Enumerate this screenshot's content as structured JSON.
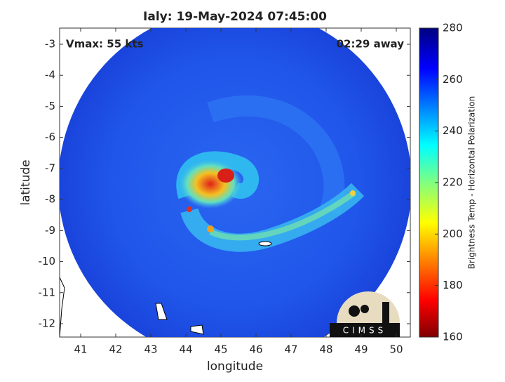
{
  "chart_data": {
    "type": "image",
    "title": "Ialy: 19-May-2024 07:45:00",
    "annotations": [
      "Vmax: 55 kts",
      "02:29 away"
    ],
    "xlabel": "longitude",
    "ylabel": "latitude",
    "xlim": [
      40.4,
      50.4
    ],
    "xticks": [
      41,
      42,
      43,
      44,
      45,
      46,
      47,
      48,
      49,
      50
    ],
    "ylim": [
      -12.43,
      -2.48
    ],
    "yticks": [
      -3,
      -4,
      -5,
      -6,
      -7,
      -8,
      -9,
      -10,
      -11,
      -12
    ],
    "colorbar": {
      "label": "Brightness Temp - Horizontal Polarization",
      "clim": [
        160,
        280
      ],
      "ticks": [
        160,
        180,
        200,
        220,
        240,
        260,
        280
      ]
    },
    "logo": "CIMSS"
  }
}
